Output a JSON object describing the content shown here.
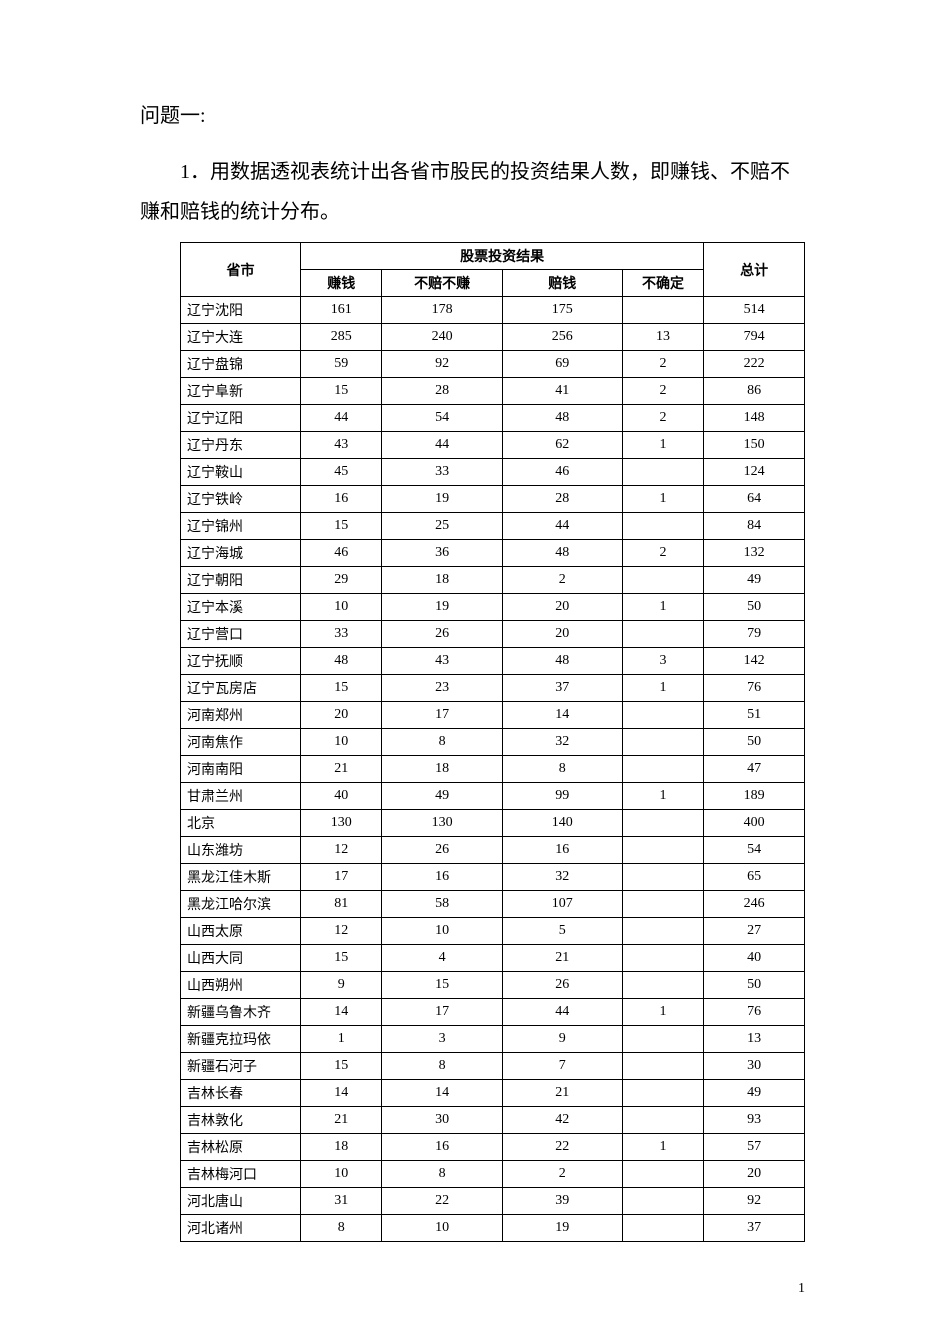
{
  "heading": "问题一:",
  "question_text": "1．用数据透视表统计出各省市股民的投资结果人数，即赚钱、不赔不赚和赔钱的统计分布。",
  "page_number": "1",
  "table": {
    "header_province": "省市",
    "header_group": "股票投资结果",
    "header_total": "总计",
    "sub_headers": [
      "赚钱",
      "不赔不赚",
      "赔钱",
      "不确定"
    ],
    "rows": [
      {
        "p": "辽宁沈阳",
        "v": [
          "161",
          "178",
          "175",
          ""
        ],
        "t": "514"
      },
      {
        "p": "辽宁大连",
        "v": [
          "285",
          "240",
          "256",
          "13"
        ],
        "t": "794"
      },
      {
        "p": "辽宁盘锦",
        "v": [
          "59",
          "92",
          "69",
          "2"
        ],
        "t": "222"
      },
      {
        "p": "辽宁阜新",
        "v": [
          "15",
          "28",
          "41",
          "2"
        ],
        "t": "86"
      },
      {
        "p": "辽宁辽阳",
        "v": [
          "44",
          "54",
          "48",
          "2"
        ],
        "t": "148"
      },
      {
        "p": "辽宁丹东",
        "v": [
          "43",
          "44",
          "62",
          "1"
        ],
        "t": "150"
      },
      {
        "p": "辽宁鞍山",
        "v": [
          "45",
          "33",
          "46",
          ""
        ],
        "t": "124"
      },
      {
        "p": "辽宁铁岭",
        "v": [
          "16",
          "19",
          "28",
          "1"
        ],
        "t": "64"
      },
      {
        "p": "辽宁锦州",
        "v": [
          "15",
          "25",
          "44",
          ""
        ],
        "t": "84"
      },
      {
        "p": "辽宁海城",
        "v": [
          "46",
          "36",
          "48",
          "2"
        ],
        "t": "132"
      },
      {
        "p": "辽宁朝阳",
        "v": [
          "29",
          "18",
          "2",
          ""
        ],
        "t": "49"
      },
      {
        "p": "辽宁本溪",
        "v": [
          "10",
          "19",
          "20",
          "1"
        ],
        "t": "50"
      },
      {
        "p": "辽宁营口",
        "v": [
          "33",
          "26",
          "20",
          ""
        ],
        "t": "79"
      },
      {
        "p": "辽宁抚顺",
        "v": [
          "48",
          "43",
          "48",
          "3"
        ],
        "t": "142"
      },
      {
        "p": "辽宁瓦房店",
        "v": [
          "15",
          "23",
          "37",
          "1"
        ],
        "t": "76"
      },
      {
        "p": "河南郑州",
        "v": [
          "20",
          "17",
          "14",
          ""
        ],
        "t": "51"
      },
      {
        "p": "河南焦作",
        "v": [
          "10",
          "8",
          "32",
          ""
        ],
        "t": "50"
      },
      {
        "p": "河南南阳",
        "v": [
          "21",
          "18",
          "8",
          ""
        ],
        "t": "47"
      },
      {
        "p": "甘肃兰州",
        "v": [
          "40",
          "49",
          "99",
          "1"
        ],
        "t": "189"
      },
      {
        "p": "北京",
        "v": [
          "130",
          "130",
          "140",
          ""
        ],
        "t": "400"
      },
      {
        "p": "山东潍坊",
        "v": [
          "12",
          "26",
          "16",
          ""
        ],
        "t": "54"
      },
      {
        "p": "黑龙江佳木斯",
        "v": [
          "17",
          "16",
          "32",
          ""
        ],
        "t": "65"
      },
      {
        "p": "黑龙江哈尔滨",
        "v": [
          "81",
          "58",
          "107",
          ""
        ],
        "t": "246"
      },
      {
        "p": "山西太原",
        "v": [
          "12",
          "10",
          "5",
          ""
        ],
        "t": "27"
      },
      {
        "p": "山西大同",
        "v": [
          "15",
          "4",
          "21",
          ""
        ],
        "t": "40"
      },
      {
        "p": "山西朔州",
        "v": [
          "9",
          "15",
          "26",
          ""
        ],
        "t": "50"
      },
      {
        "p": "新疆乌鲁木齐",
        "v": [
          "14",
          "17",
          "44",
          "1"
        ],
        "t": "76"
      },
      {
        "p": "新疆克拉玛依",
        "v": [
          "1",
          "3",
          "9",
          ""
        ],
        "t": "13"
      },
      {
        "p": "新疆石河子",
        "v": [
          "15",
          "8",
          "7",
          ""
        ],
        "t": "30"
      },
      {
        "p": "吉林长春",
        "v": [
          "14",
          "14",
          "21",
          ""
        ],
        "t": "49"
      },
      {
        "p": "吉林敦化",
        "v": [
          "21",
          "30",
          "42",
          ""
        ],
        "t": "93"
      },
      {
        "p": "吉林松原",
        "v": [
          "18",
          "16",
          "22",
          "1"
        ],
        "t": "57"
      },
      {
        "p": "吉林梅河口",
        "v": [
          "10",
          "8",
          "2",
          ""
        ],
        "t": "20"
      },
      {
        "p": "河北唐山",
        "v": [
          "31",
          "22",
          "39",
          ""
        ],
        "t": "92"
      },
      {
        "p": "河北诸州",
        "v": [
          "8",
          "10",
          "19",
          ""
        ],
        "t": "37"
      }
    ]
  }
}
